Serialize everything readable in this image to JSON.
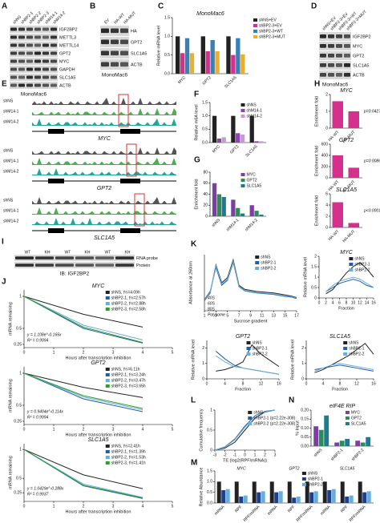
{
  "panel_labels": [
    "A",
    "B",
    "C",
    "D",
    "E",
    "F",
    "G",
    "H",
    "I",
    "J",
    "K",
    "L",
    "M",
    "N"
  ],
  "blots": [
    {
      "caption": "MonoMac6",
      "lanes": [
        "shNS",
        "shBP2-1",
        "shBP2-2",
        "shBP2-3",
        "shM14-1",
        "shM14-2"
      ],
      "rows": [
        "IGF2BP2",
        "METTL3",
        "METTL14",
        "GPT2",
        "MYC",
        "GAPDH",
        "SLC1A5",
        "ACTB"
      ]
    },
    {
      "caption": "MonoMac6",
      "lanes": [
        "EV",
        "HA-WT",
        "HA-MUT"
      ],
      "rows": [
        "HA",
        "GPT2",
        "SLC1A5",
        "ACTB"
      ]
    },
    {
      "caption": "MonoMac6",
      "lanes": [
        "shNS+EV",
        "shBP2-3+EV",
        "shBP2-3+WT",
        "shBP2-3+MUT"
      ],
      "rows": [
        "IGF2BP2",
        "MYC",
        "GPT2",
        "SLC1A5",
        "ACTB"
      ]
    },
    {
      "caption": "IB: IGF2BP2",
      "lanes": [
        "WT",
        "KH",
        "WT",
        "KH",
        "WT",
        "KH"
      ],
      "rows": [
        "RNA probe",
        "Protein"
      ]
    }
  ],
  "tracks": {
    "samples": [
      "shNS",
      "shM14-1",
      "shM14-2"
    ],
    "genes": [
      "MYC",
      "GPT2",
      "SLC1A5"
    ]
  },
  "chart_data": [
    {
      "type": "bar",
      "title": "MonoMac6",
      "y_label": "Relative mRNA level",
      "categories": [
        "MYC",
        "GPT2",
        "SLC1A5"
      ],
      "series": [
        {
          "name": "shNS+EV",
          "color": "#222222",
          "values": [
            1,
            1,
            1
          ]
        },
        {
          "name": "shBP2-3+EV",
          "color": "#d6308f",
          "values": [
            0.55,
            0.6,
            0.5
          ]
        },
        {
          "name": "shBP2-3+WT",
          "color": "#3a7fb8",
          "values": [
            0.95,
            0.9,
            0.95
          ]
        },
        {
          "name": "shBP2-3+MUT",
          "color": "#e8b030",
          "values": [
            0.55,
            0.6,
            0.52
          ]
        }
      ],
      "ylim": [
        0,
        1.5
      ],
      "yticks": [
        {
          "value": 0,
          "label": "0.0"
        },
        0.5,
        {
          "value": 1,
          "label": "1.0"
        },
        1.5
      ]
    },
    {
      "type": "bar",
      "y_label": "Relative m6A level",
      "categories": [
        "MYC",
        "GPT2",
        "SLC1A5"
      ],
      "series": [
        {
          "name": "shNS",
          "color": "#222222",
          "values": [
            1,
            1,
            1
          ]
        },
        {
          "name": "shM14-1",
          "color": "#8e44ad",
          "values": [
            0.15,
            0.35,
            0.05
          ]
        },
        {
          "name": "shM14-2",
          "color": "#c39bd3",
          "values": [
            0.2,
            0.3,
            0.05
          ]
        }
      ],
      "ylim": [
        0,
        1.5
      ],
      "yticks": [
        {
          "value": 0,
          "label": "0.0"
        },
        0.5,
        {
          "value": 1,
          "label": "1.0"
        },
        1.5
      ]
    },
    {
      "type": "bar",
      "y_label": "Enrichment fold",
      "categories": [
        "shNS",
        "shM14-1",
        "shM14-2"
      ],
      "series": [
        {
          "name": "MYC",
          "color": "#7b3fa0",
          "values": [
            60,
            30,
            20
          ]
        },
        {
          "name": "GPT2",
          "color": "#2e8b57",
          "values": [
            40,
            15,
            10
          ]
        },
        {
          "name": "SLC1A5",
          "color": "#1f7a8c",
          "values": [
            35,
            5,
            3
          ]
        }
      ],
      "ylim": [
        0,
        80
      ],
      "yticks": [
        0,
        20,
        40,
        60,
        80
      ]
    },
    {
      "type": "bar",
      "title": "MYC",
      "y_label": "Enrichment fold",
      "annotations": [
        "p=0.0427"
      ],
      "categories": [
        "HA-WT",
        "HA-MUT"
      ],
      "series": [
        {
          "color": "#d6308f",
          "values": [
            1.6,
            1.0
          ]
        }
      ],
      "ylim": [
        0,
        2
      ],
      "yticks": [
        0,
        1,
        2
      ]
    },
    {
      "type": "bar",
      "title": "GPT2",
      "y_label": "Enrichment fold",
      "annotations": [
        "p=0.0086"
      ],
      "categories": [
        "HA-WT",
        "HA-MUT"
      ],
      "series": [
        {
          "color": "#d6308f",
          "values": [
            400,
            180
          ]
        }
      ],
      "ylim": [
        0,
        600
      ],
      "yticks": [
        0,
        200,
        400,
        600
      ]
    },
    {
      "type": "bar",
      "title": "SLC1A5",
      "y_label": "Enrichment fold",
      "annotations": [
        "p<0.0001"
      ],
      "categories": [
        "HA-WT",
        "HA-MUT"
      ],
      "series": [
        {
          "color": "#d6308f",
          "values": [
            4.5,
            0.8
          ]
        }
      ],
      "ylim": [
        0,
        6
      ],
      "yticks": [
        0,
        2,
        4,
        6
      ]
    },
    {
      "type": "line",
      "title": "MYC",
      "x_label": "Hours after transcription inhibition",
      "y_label": "mRNA remaining",
      "annotations": [
        "y = 1.108e^-0.165x",
        "R² = 0.9994"
      ],
      "x": [
        0,
        2,
        4
      ],
      "series": [
        {
          "name": "shNS, t½=4.09h",
          "color": "#222222",
          "values": [
            1,
            0.72,
            0.52
          ]
        },
        {
          "name": "shBP2-1, t½=2.57h",
          "color": "#1f5fa8",
          "values": [
            1,
            0.5,
            0.27
          ]
        },
        {
          "name": "shBP2-2, t½=2.88h",
          "color": "#6aaed6",
          "values": [
            1,
            0.55,
            0.32
          ]
        },
        {
          "name": "shBP2-3, t½=2.58h",
          "color": "#2ca02c",
          "values": [
            1,
            0.52,
            0.28
          ]
        }
      ],
      "xlim": [
        0,
        5
      ],
      "xticks": [
        0,
        1,
        2,
        3,
        4,
        5
      ],
      "ylim": [
        0.2,
        1.1
      ],
      "yticks": [
        0.25,
        0.5,
        1
      ]
    },
    {
      "type": "line",
      "title": "GPT2",
      "x_label": "Hours after transcription inhibition",
      "y_label": "mRNA remaining",
      "annotations": [
        "y = 0.9404e^-0.114x",
        "R² = 0.9994"
      ],
      "x": [
        0,
        2,
        4
      ],
      "series": [
        {
          "name": "shNS, t½=6.11h",
          "color": "#222222",
          "values": [
            1,
            0.78,
            0.62
          ]
        },
        {
          "name": "shBP2-1, t½=3.24h",
          "color": "#1f5fa8",
          "values": [
            1,
            0.6,
            0.4
          ]
        },
        {
          "name": "shBP2-2, t½=3.47h",
          "color": "#6aaed6",
          "values": [
            1,
            0.63,
            0.43
          ]
        },
        {
          "name": "shBP2-3, t½=3.65h",
          "color": "#2ca02c",
          "values": [
            1,
            0.65,
            0.45
          ]
        }
      ],
      "xlim": [
        0,
        5
      ],
      "xticks": [
        0,
        1,
        2,
        3,
        4,
        5
      ],
      "ylim": [
        0.2,
        1.1
      ],
      "yticks": [
        0.25,
        0.5,
        1
      ]
    },
    {
      "type": "line",
      "title": "SLC1A5",
      "x_label": "Hours after transcription inhibition",
      "y_label": "mRNA remaining",
      "annotations": [
        "y = 1.0429e^-0.288x",
        "R² = 0.9937"
      ],
      "x": [
        0,
        2,
        4
      ],
      "series": [
        {
          "name": "shNS, t½=2.41h",
          "color": "#222222",
          "values": [
            1,
            0.56,
            0.32
          ]
        },
        {
          "name": "shBP2-1, t½=1.39h",
          "color": "#1f5fa8",
          "values": [
            1,
            0.37,
            0.15
          ]
        },
        {
          "name": "shBP2-2, t½=1.53h",
          "color": "#6aaed6",
          "values": [
            1,
            0.4,
            0.17
          ]
        },
        {
          "name": "shBP2-3, t½=1.41h",
          "color": "#2ca02c",
          "values": [
            1,
            0.38,
            0.16
          ]
        }
      ],
      "xlim": [
        0,
        5
      ],
      "xticks": [
        0,
        1,
        2,
        3,
        4,
        5
      ],
      "ylim": [
        0.1,
        1.1
      ],
      "yticks": [
        0.25,
        0.5,
        1
      ]
    },
    {
      "type": "line",
      "x_label": "Sucrose gradient",
      "y_label": "Absorbance at 260nm",
      "annotations": [
        "40S",
        "60S",
        "80S",
        "Polysome"
      ],
      "x": [
        1,
        2,
        3,
        4,
        5,
        6,
        7,
        8,
        9,
        10,
        11,
        12,
        13,
        14,
        15,
        16,
        17
      ],
      "series": [
        {
          "name": "shNS",
          "color": "#222222",
          "values": [
            0.2,
            0.35,
            0.9,
            0.55,
            0.65,
            1.0,
            0.5,
            0.42,
            0.4,
            0.38,
            0.37,
            0.36,
            0.35,
            0.33,
            0.31,
            0.29,
            0.26
          ]
        },
        {
          "name": "shBP2-1",
          "color": "#1f5fa8",
          "values": [
            0.22,
            0.38,
            0.85,
            0.5,
            0.6,
            0.95,
            0.47,
            0.39,
            0.37,
            0.35,
            0.34,
            0.33,
            0.32,
            0.3,
            0.28,
            0.27,
            0.24
          ]
        },
        {
          "name": "shBP2-2",
          "color": "#6aaed6",
          "values": [
            0.21,
            0.36,
            0.88,
            0.52,
            0.62,
            0.97,
            0.48,
            0.4,
            0.38,
            0.36,
            0.35,
            0.34,
            0.33,
            0.31,
            0.29,
            0.28,
            0.25
          ]
        }
      ],
      "xlim": [
        1,
        17
      ],
      "xticks": [
        1,
        3,
        5,
        7,
        9,
        11,
        13,
        15,
        17
      ],
      "ylim": [
        0,
        1.1
      ],
      "yticks": []
    },
    {
      "type": "line",
      "title": "MYC",
      "x_label": "Fraction",
      "y_label": "Relative mRNA level",
      "x": [
        2,
        4,
        6,
        8,
        10,
        12,
        14,
        16
      ],
      "series": [
        {
          "name": "shNS",
          "color": "#222222",
          "values": [
            0.2,
            0.4,
            0.8,
            1.2,
            1.5,
            1.7,
            1.4,
            1.0
          ]
        },
        {
          "name": "shBP2-1",
          "color": "#1f5fa8",
          "values": [
            0.3,
            0.5,
            0.7,
            0.8,
            0.9,
            0.8,
            0.6,
            0.5
          ]
        },
        {
          "name": "shBP2-2",
          "color": "#6aaed6",
          "values": [
            0.3,
            0.6,
            0.8,
            0.9,
            1.0,
            0.9,
            0.7,
            0.5
          ]
        }
      ],
      "xlim": [
        0,
        16
      ],
      "xticks": [
        0,
        2,
        4,
        6,
        8,
        10,
        12,
        14,
        16
      ],
      "ylim": [
        0,
        2
      ],
      "yticks": [
        0,
        0.5,
        1,
        1.5,
        2
      ]
    },
    {
      "type": "line",
      "title": "GPT2",
      "x_label": "Fraction",
      "y_label": "Relative mRNA level",
      "x": [
        2,
        4,
        6,
        8,
        10,
        12,
        14,
        16
      ],
      "series": [
        {
          "name": "shNS",
          "color": "#222222",
          "values": [
            0.5,
            0.6,
            0.8,
            1.1,
            2.2,
            1.6,
            1.2,
            0.8
          ]
        },
        {
          "name": "shBP2-1",
          "color": "#1f5fa8",
          "values": [
            1.8,
            1.3,
            0.9,
            0.7,
            0.6,
            0.5,
            0.4,
            0.3
          ]
        },
        {
          "name": "shBP2-2",
          "color": "#6aaed6",
          "values": [
            1.5,
            1.1,
            0.8,
            0.7,
            0.6,
            0.5,
            0.4,
            0.3
          ]
        }
      ],
      "xlim": [
        0,
        16
      ],
      "xticks": [
        0,
        4,
        8,
        12,
        16
      ],
      "ylim": [
        0,
        2.5
      ],
      "yticks": [
        0,
        1,
        2
      ]
    },
    {
      "type": "line",
      "title": "SLC1A5",
      "x_label": "Fraction",
      "y_label": "Relative mRNA level",
      "x": [
        2,
        4,
        6,
        8,
        10,
        12,
        14,
        16
      ],
      "series": [
        {
          "name": "shNS",
          "color": "#222222",
          "values": [
            0.4,
            0.6,
            0.9,
            1.2,
            1.5,
            1.9,
            2.3,
            1.6
          ]
        },
        {
          "name": "shBP2-1",
          "color": "#1f5fa8",
          "values": [
            0.6,
            0.7,
            0.8,
            0.9,
            0.8,
            0.7,
            0.6,
            0.5
          ]
        },
        {
          "name": "shBP2-2",
          "color": "#6aaed6",
          "values": [
            0.5,
            0.7,
            0.9,
            1.0,
            0.9,
            0.8,
            0.7,
            0.6
          ]
        }
      ],
      "xlim": [
        0,
        16
      ],
      "xticks": [
        0,
        4,
        8,
        12,
        16
      ],
      "ylim": [
        0,
        2.5
      ],
      "yticks": [
        0,
        1,
        2
      ]
    },
    {
      "type": "line",
      "x_label": "TE (log2(RPF/mRNA))",
      "y_label": "Cumulative frequency",
      "x": [
        -3,
        -2,
        -1,
        0,
        1,
        2,
        3
      ],
      "series": [
        {
          "name": "shNS",
          "color": "#222222",
          "values": [
            0,
            0.05,
            0.2,
            0.5,
            0.8,
            0.95,
            1
          ]
        },
        {
          "name": "shBP2-1 (p=2.22e-308)",
          "color": "#1f5fa8",
          "values": [
            0,
            0.08,
            0.28,
            0.6,
            0.86,
            0.97,
            1
          ]
        },
        {
          "name": "shBP2-2 (p=2.22e-308)",
          "color": "#6aaed6",
          "values": [
            0,
            0.07,
            0.26,
            0.57,
            0.85,
            0.96,
            1
          ]
        }
      ],
      "xlim": [
        -3,
        3
      ],
      "xticks": [
        -3,
        -2,
        -1,
        0,
        1,
        2,
        3
      ],
      "ylim": [
        0,
        1
      ],
      "yticks": [
        0,
        0.5,
        1
      ]
    },
    {
      "type": "bar",
      "title": "eIF4E RIP",
      "y_label": "% Input",
      "categories": [
        "shNS",
        "shBP2-1",
        "shBP2-2"
      ],
      "series": [
        {
          "name": "MYC",
          "color": "#7b3fa0",
          "values": [
            0.11,
            0.02,
            0.03
          ]
        },
        {
          "name": "GPT2",
          "color": "#2e8b57",
          "values": [
            0.09,
            0.03,
            0.02
          ]
        },
        {
          "name": "SLC1A5",
          "color": "#1f7a8c",
          "values": [
            0.17,
            0.04,
            0.05
          ]
        }
      ],
      "ylim": [
        0,
        0.2
      ],
      "yticks": [
        {
          "value": 0,
          "label": "0.00"
        },
        {
          "value": 0.05,
          "label": "0.05"
        },
        {
          "value": 0.1,
          "label": "0.10"
        },
        {
          "value": 0.15,
          "label": "0.15"
        },
        {
          "value": 0.2,
          "label": "0.20"
        }
      ]
    },
    {
      "type": "bar",
      "y_label": "Relative Abundance",
      "annotations": [
        "MYC",
        "GPT2",
        "SLC1A5"
      ],
      "categories": [
        "mRNA",
        "RPF",
        "RPF/mRNA",
        "mRNA",
        "RPF",
        "RPF/mRNA",
        "mRNA",
        "RPF",
        "RPF/mRNA"
      ],
      "series": [
        {
          "name": "shNS",
          "color": "#222222",
          "values": [
            1,
            1,
            1,
            1,
            1,
            1,
            1,
            1,
            1
          ]
        },
        {
          "name": "shBP2-1",
          "color": "#1f3f8a",
          "values": [
            0.6,
            0.3,
            0.5,
            0.5,
            0.25,
            0.5,
            0.6,
            0.3,
            0.5
          ]
        },
        {
          "name": "shBP2-2",
          "color": "#6aaed6",
          "values": [
            0.65,
            0.35,
            0.55,
            0.55,
            0.3,
            0.55,
            0.65,
            0.35,
            0.55
          ]
        }
      ],
      "ylim": [
        0,
        1.5
      ],
      "yticks": [
        {
          "value": 0,
          "label": "0.0"
        },
        0.5,
        {
          "value": 1,
          "label": "1.0"
        },
        1.5
      ]
    }
  ]
}
